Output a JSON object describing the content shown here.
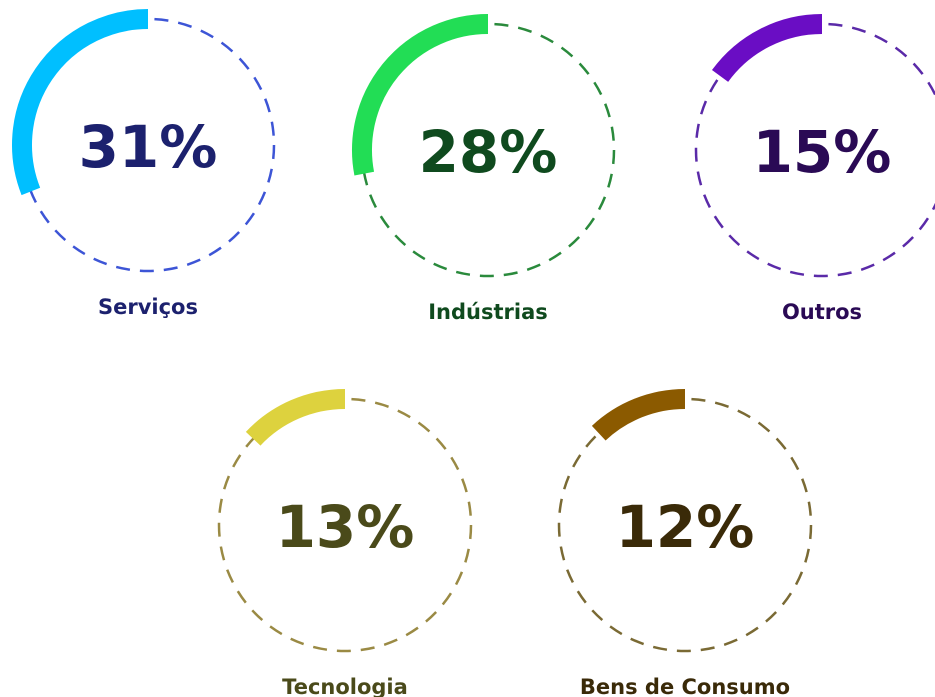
{
  "chart_data": {
    "type": "gauge",
    "categories": [
      "Serviços",
      "Indústrias",
      "Outros",
      "Tecnologia",
      "Bens de Consumo"
    ],
    "values": [
      31,
      28,
      15,
      13,
      12
    ],
    "value_labels": [
      "31%",
      "28%",
      "15%",
      "13%",
      "12%"
    ],
    "colors": [
      "#00bfff",
      "#22dd55",
      "#6a0dc4",
      "#ddd23e",
      "#8b5a00"
    ],
    "track_colors": [
      "#3d55d6",
      "#2a8a3c",
      "#5a2aa8",
      "#9a8a44",
      "#7a6a34"
    ],
    "text_colors": [
      "#1c216e",
      "#0f4a1e",
      "#2a0a55",
      "#4a4a1a",
      "#3a2a08"
    ]
  }
}
